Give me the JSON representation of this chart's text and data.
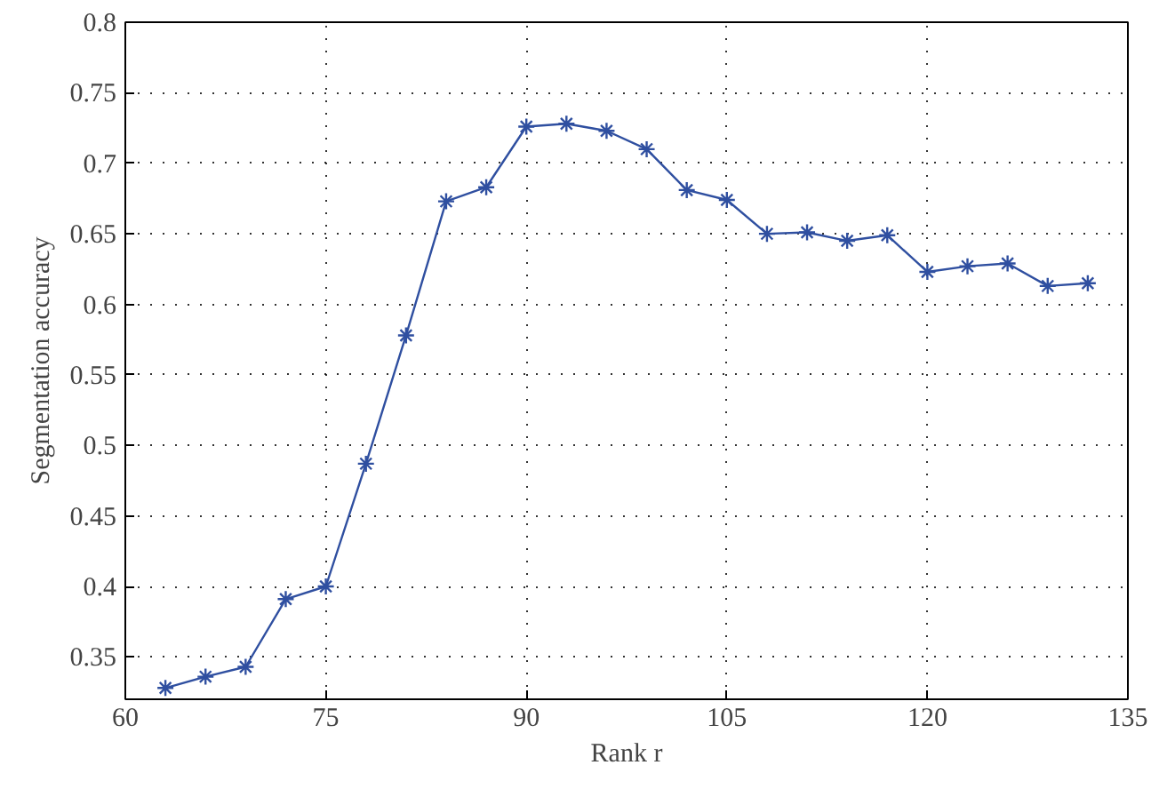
{
  "chart_data": {
    "type": "line",
    "xlabel": "Rank r",
    "ylabel": "Segmentation accuracy",
    "x": [
      63,
      66,
      69,
      72,
      75,
      78,
      81,
      84,
      87,
      90,
      93,
      96,
      99,
      102,
      105,
      108,
      111,
      114,
      117,
      120,
      123,
      126,
      129,
      132
    ],
    "series": [
      {
        "color": "#2f4fa0",
        "values": [
          0.328,
          0.336,
          0.343,
          0.391,
          0.4,
          0.487,
          0.578,
          0.673,
          0.683,
          0.726,
          0.728,
          0.723,
          0.71,
          0.681,
          0.674,
          0.65,
          0.651,
          0.645,
          0.649,
          0.623,
          0.627,
          0.629,
          0.613,
          0.615
        ]
      }
    ],
    "xlim": [
      60,
      135
    ],
    "xticks": [
      60,
      75,
      90,
      105,
      120,
      135
    ],
    "ylim": [
      0.32,
      0.8
    ],
    "yticks": [
      0.35,
      0.4,
      0.45,
      0.5,
      0.55,
      0.6,
      0.65,
      0.7,
      0.75,
      0.8
    ],
    "grid": true,
    "marker": "cross",
    "line_style": "solid"
  }
}
